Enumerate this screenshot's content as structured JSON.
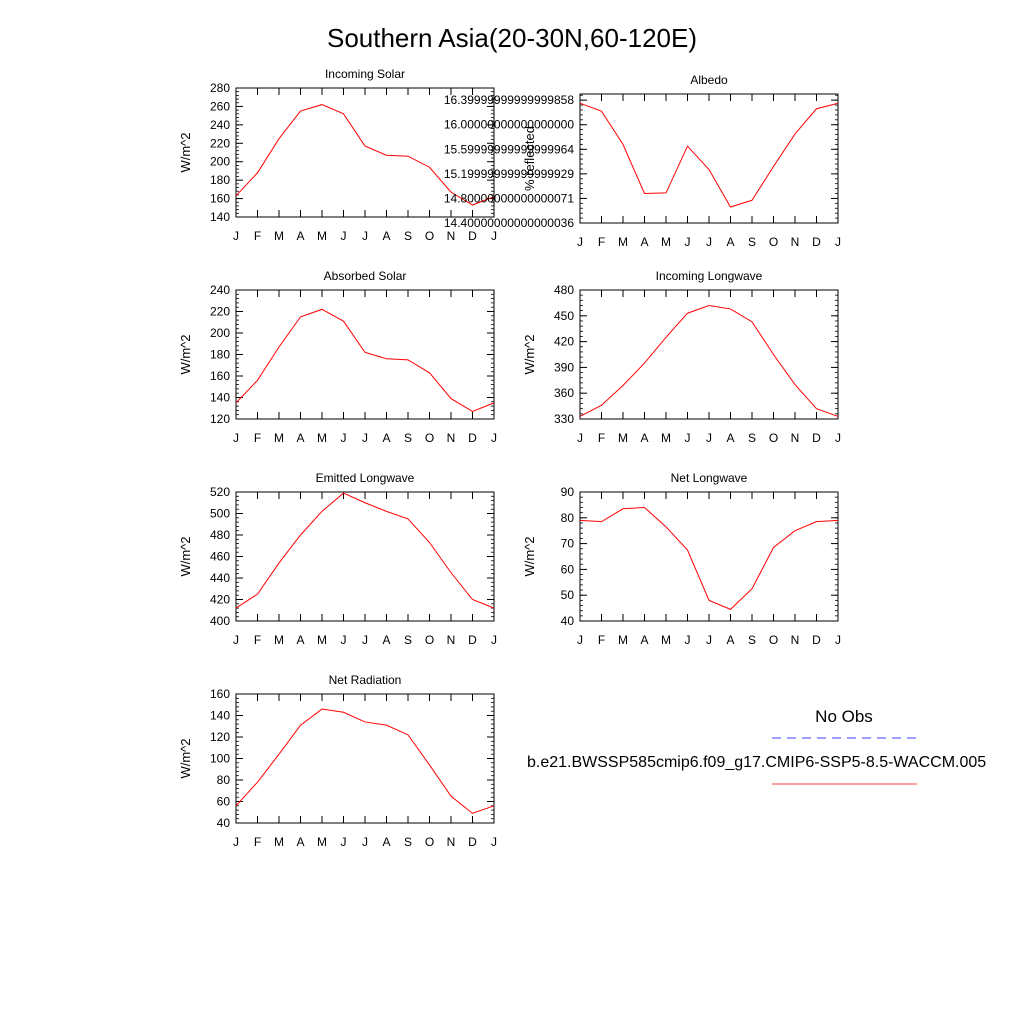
{
  "figure": {
    "title": "Southern Asia(20-30N,60-120E)"
  },
  "legend": {
    "obs_label": "No Obs",
    "model_label": "b.e21.BWSSP585cmip6.f09_g17.CMIP6-SSP5-8.5-WACCM.005",
    "obs_color": "#0000ff",
    "model_color": "#ff0000"
  },
  "chart_data": [
    {
      "type": "line",
      "title": "Incoming Solar",
      "ylabel": "W/m^2",
      "x": [
        "J",
        "F",
        "M",
        "A",
        "M",
        "J",
        "J",
        "A",
        "S",
        "O",
        "N",
        "D",
        "J"
      ],
      "ylim": [
        140,
        280
      ],
      "yticks": [
        140,
        160,
        180,
        200,
        220,
        240,
        260,
        280
      ],
      "series": [
        {
          "values": [
            163,
            188,
            225,
            255,
            262,
            252,
            217,
            207,
            206,
            194,
            167,
            153,
            162
          ]
        }
      ]
    },
    {
      "type": "line",
      "title": "Albedo",
      "ylabel": "% reflected",
      "x": [
        "J",
        "F",
        "M",
        "A",
        "M",
        "J",
        "J",
        "A",
        "S",
        "O",
        "N",
        "D",
        "J"
      ],
      "ylim": [
        14.4,
        16.5
      ],
      "yticks": [
        14.4,
        14.8,
        15.2,
        15.6,
        16.0,
        16.4
      ],
      "series": [
        {
          "values": [
            16.35,
            16.22,
            15.68,
            14.88,
            14.89,
            15.65,
            15.27,
            14.66,
            14.77,
            15.32,
            15.85,
            16.26,
            16.35
          ]
        }
      ]
    },
    {
      "type": "line",
      "title": "Absorbed Solar",
      "ylabel": "W/m^2",
      "x": [
        "J",
        "F",
        "M",
        "A",
        "M",
        "J",
        "J",
        "A",
        "S",
        "O",
        "N",
        "D",
        "J"
      ],
      "ylim": [
        120,
        240
      ],
      "yticks": [
        120,
        140,
        160,
        180,
        200,
        220,
        240
      ],
      "series": [
        {
          "values": [
            135,
            156,
            187,
            215,
            222,
            211,
            182,
            176,
            175,
            163,
            139,
            127,
            135
          ]
        }
      ]
    },
    {
      "type": "line",
      "title": "Incoming Longwave",
      "ylabel": "W/m^2",
      "x": [
        "J",
        "F",
        "M",
        "A",
        "M",
        "J",
        "J",
        "A",
        "S",
        "O",
        "N",
        "D",
        "J"
      ],
      "ylim": [
        330,
        480
      ],
      "yticks": [
        330,
        360,
        390,
        420,
        450,
        480
      ],
      "series": [
        {
          "values": [
            333,
            346,
            369,
            395,
            425,
            453,
            462,
            458,
            443,
            405,
            370,
            342,
            333
          ]
        }
      ]
    },
    {
      "type": "line",
      "title": "Emitted Longwave",
      "ylabel": "W/m^2",
      "x": [
        "J",
        "F",
        "M",
        "A",
        "M",
        "J",
        "J",
        "A",
        "S",
        "O",
        "N",
        "D",
        "J"
      ],
      "ylim": [
        400,
        520
      ],
      "yticks": [
        400,
        420,
        440,
        460,
        480,
        500,
        520
      ],
      "series": [
        {
          "values": [
            412,
            425,
            454,
            480,
            502,
            519,
            510,
            502,
            495,
            473,
            445,
            420,
            412
          ]
        }
      ]
    },
    {
      "type": "line",
      "title": "Net Longwave",
      "ylabel": "W/m^2",
      "x": [
        "J",
        "F",
        "M",
        "A",
        "M",
        "J",
        "J",
        "A",
        "S",
        "O",
        "N",
        "D",
        "J"
      ],
      "ylim": [
        40,
        90
      ],
      "yticks": [
        40,
        50,
        60,
        70,
        80,
        90
      ],
      "series": [
        {
          "values": [
            79,
            78.5,
            83.5,
            84,
            76.5,
            67.5,
            48,
            44.5,
            52.5,
            68.5,
            75,
            78.5,
            79
          ]
        }
      ]
    },
    {
      "type": "line",
      "title": "Net Radiation",
      "ylabel": "W/m^2",
      "x": [
        "J",
        "F",
        "M",
        "A",
        "M",
        "J",
        "J",
        "A",
        "S",
        "O",
        "N",
        "D",
        "J"
      ],
      "ylim": [
        40,
        160
      ],
      "yticks": [
        40,
        60,
        80,
        100,
        120,
        140,
        160
      ],
      "series": [
        {
          "values": [
            56,
            78,
            104,
            131,
            146,
            143,
            134,
            131,
            122,
            94,
            65,
            49,
            56
          ]
        }
      ]
    }
  ]
}
